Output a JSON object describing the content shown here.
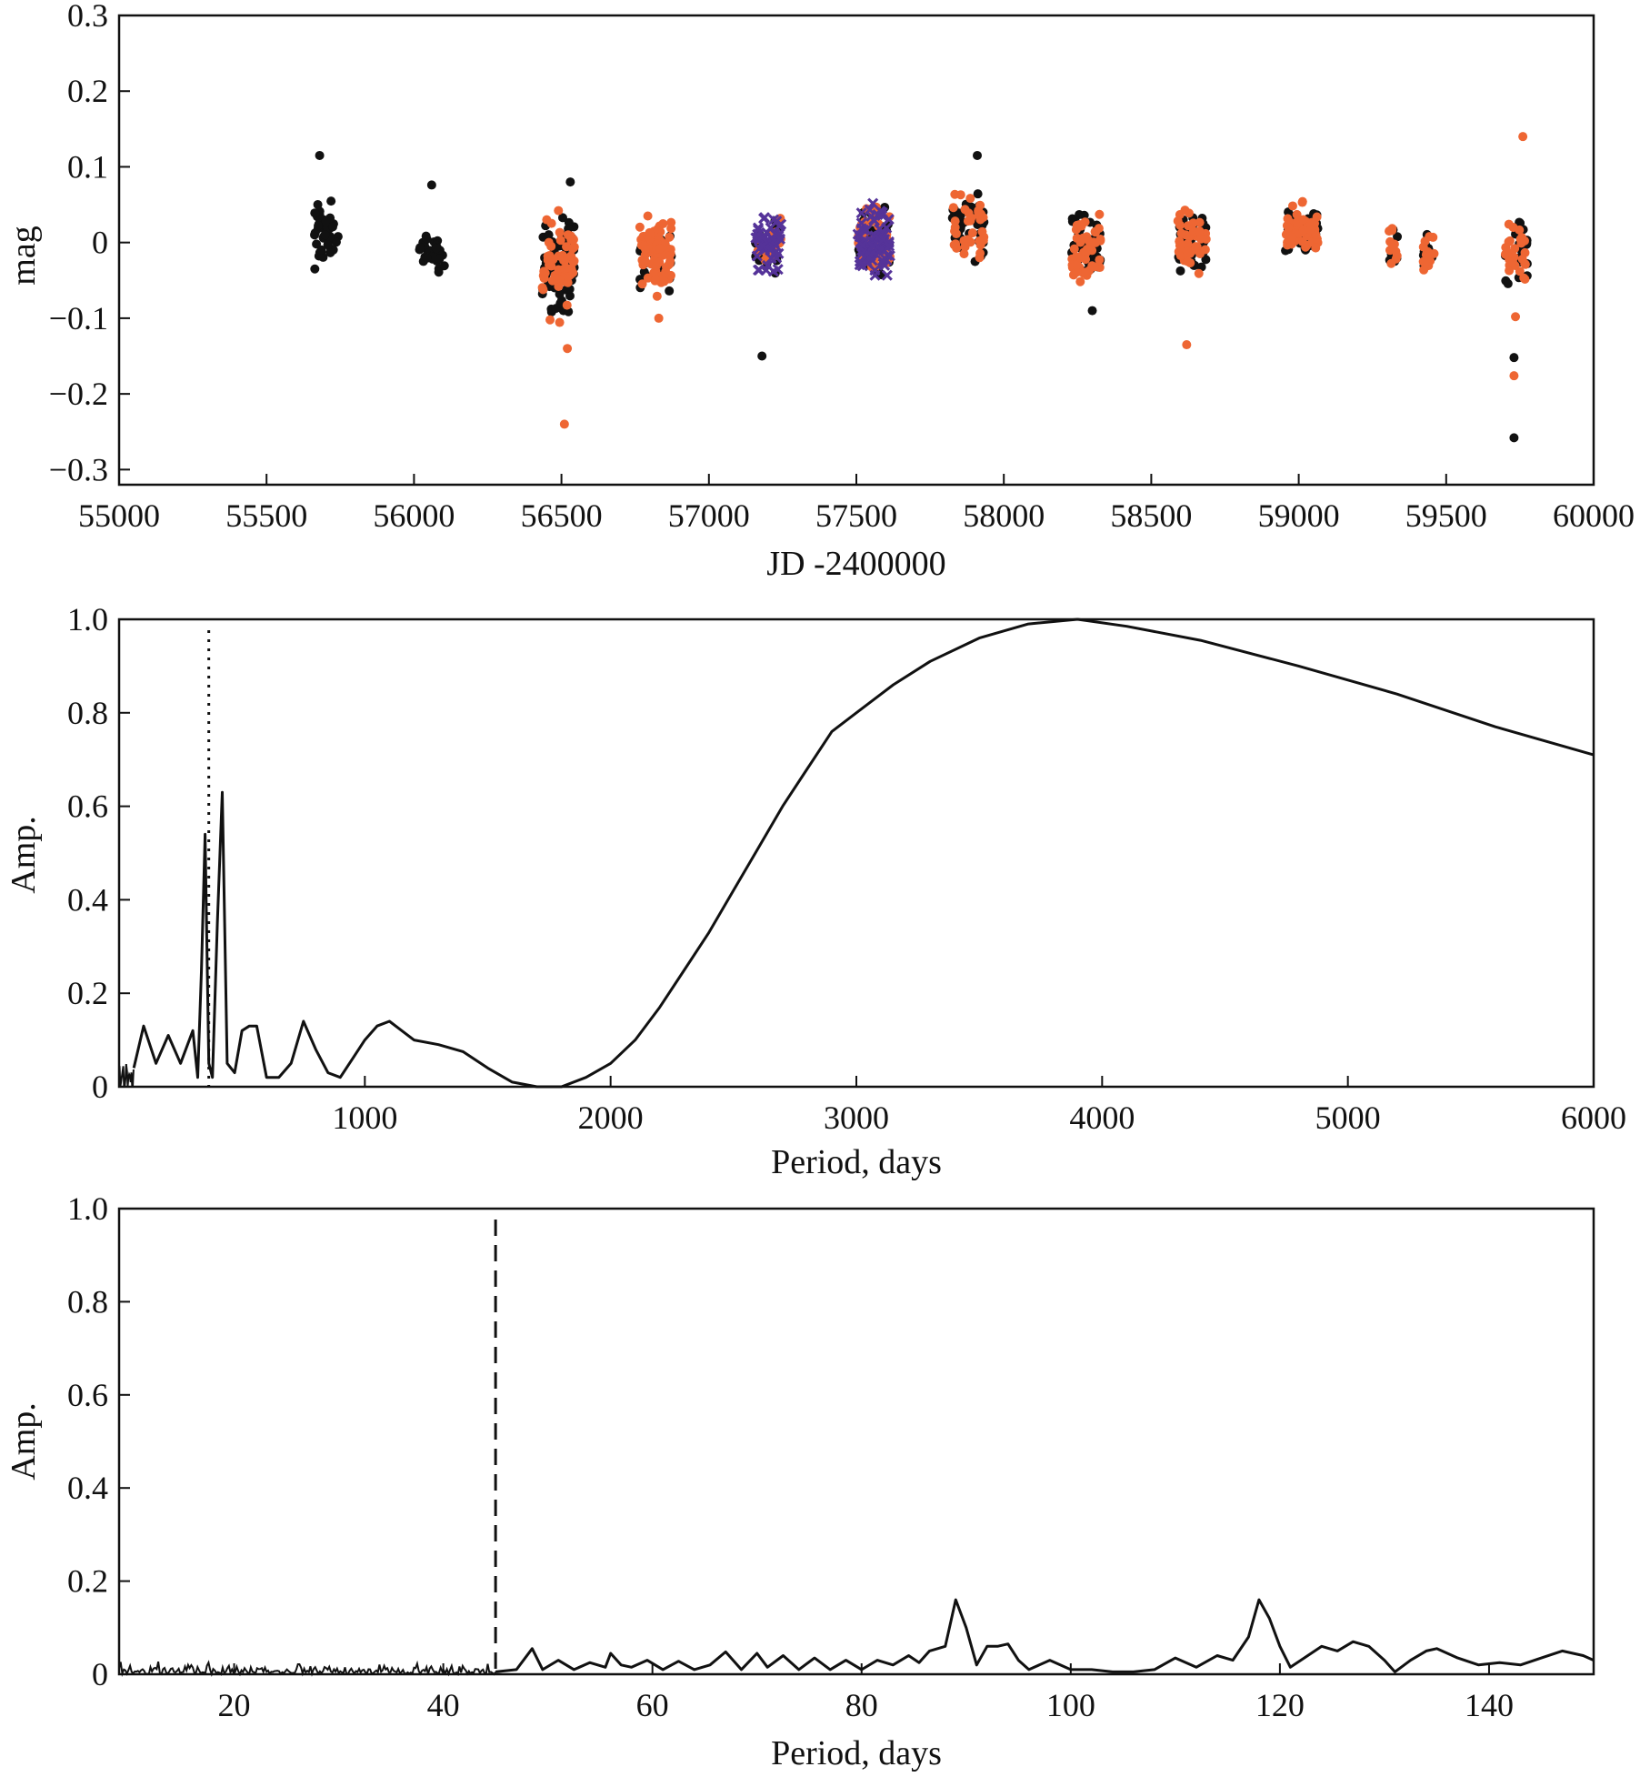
{
  "chart_data": [
    {
      "type": "scatter",
      "id": "lightcurve",
      "xlabel": "JD -2400000",
      "ylabel": "mag",
      "xlim": [
        55000,
        60000
      ],
      "ylim": [
        -0.32,
        0.3
      ],
      "xticks": [
        55000,
        55500,
        56000,
        56500,
        57000,
        57500,
        58000,
        58500,
        59000,
        59500,
        60000
      ],
      "yticks": [
        -0.3,
        -0.2,
        -0.1,
        0,
        0.1,
        0.2,
        0.3
      ],
      "ytick_labels": [
        "−0.3",
        "−0.2",
        "−0.1",
        "0",
        "0.1",
        "0.2",
        "0.3"
      ],
      "series_colors": {
        "black": "#111111",
        "orange": "#ee6633",
        "purple": "#553399"
      },
      "seasons": [
        {
          "center": 55700,
          "width": 90,
          "black": 45,
          "orange": 0,
          "purple": 0,
          "ymin": -0.05,
          "ymax": 0.07
        },
        {
          "center": 56060,
          "width": 90,
          "black": 30,
          "orange": 0,
          "purple": 0,
          "ymin": -0.05,
          "ymax": 0.02
        },
        {
          "center": 56490,
          "width": 110,
          "black": 60,
          "orange": 60,
          "purple": 0,
          "ymin": -0.12,
          "ymax": 0.06
        },
        {
          "center": 56820,
          "width": 110,
          "black": 30,
          "orange": 80,
          "purple": 0,
          "ymin": -0.08,
          "ymax": 0.05
        },
        {
          "center": 57200,
          "width": 90,
          "black": 20,
          "orange": 20,
          "purple": 50,
          "ymin": -0.05,
          "ymax": 0.05
        },
        {
          "center": 57560,
          "width": 110,
          "black": 50,
          "orange": 50,
          "purple": 80,
          "ymin": -0.06,
          "ymax": 0.06
        },
        {
          "center": 57880,
          "width": 110,
          "black": 40,
          "orange": 40,
          "purple": 0,
          "ymin": -0.05,
          "ymax": 0.08
        },
        {
          "center": 58280,
          "width": 100,
          "black": 50,
          "orange": 50,
          "purple": 0,
          "ymin": -0.08,
          "ymax": 0.06
        },
        {
          "center": 58640,
          "width": 100,
          "black": 40,
          "orange": 40,
          "purple": 0,
          "ymin": -0.06,
          "ymax": 0.06
        },
        {
          "center": 59010,
          "width": 110,
          "black": 35,
          "orange": 60,
          "purple": 0,
          "ymin": -0.03,
          "ymax": 0.06
        },
        {
          "center": 59320,
          "width": 30,
          "black": 8,
          "orange": 10,
          "purple": 0,
          "ymin": -0.05,
          "ymax": 0.04
        },
        {
          "center": 59440,
          "width": 40,
          "black": 10,
          "orange": 15,
          "purple": 0,
          "ymin": -0.05,
          "ymax": 0.03
        },
        {
          "center": 59740,
          "width": 80,
          "black": 25,
          "orange": 30,
          "purple": 0,
          "ymin": -0.07,
          "ymax": 0.04
        }
      ],
      "outliers": [
        {
          "x": 55680,
          "y": 0.115,
          "c": "black"
        },
        {
          "x": 56060,
          "y": 0.076,
          "c": "black"
        },
        {
          "x": 56530,
          "y": 0.08,
          "c": "black"
        },
        {
          "x": 56510,
          "y": -0.24,
          "c": "orange"
        },
        {
          "x": 56520,
          "y": -0.14,
          "c": "orange"
        },
        {
          "x": 56830,
          "y": -0.1,
          "c": "orange"
        },
        {
          "x": 57180,
          "y": -0.15,
          "c": "black"
        },
        {
          "x": 57910,
          "y": 0.115,
          "c": "black"
        },
        {
          "x": 58300,
          "y": -0.09,
          "c": "black"
        },
        {
          "x": 58620,
          "y": -0.135,
          "c": "orange"
        },
        {
          "x": 59730,
          "y": -0.258,
          "c": "black"
        },
        {
          "x": 59730,
          "y": -0.152,
          "c": "black"
        },
        {
          "x": 59730,
          "y": -0.176,
          "c": "orange"
        },
        {
          "x": 59735,
          "y": -0.098,
          "c": "orange"
        },
        {
          "x": 59760,
          "y": 0.14,
          "c": "orange"
        }
      ]
    },
    {
      "type": "line",
      "id": "periodogram-long",
      "xlabel": "Period, days",
      "ylabel": "Amp.",
      "xlim": [
        0,
        6000
      ],
      "ylim": [
        0,
        1
      ],
      "xticks": [
        1000,
        2000,
        3000,
        4000,
        5000,
        6000
      ],
      "yticks": [
        0,
        0.2,
        0.4,
        0.6,
        0.8,
        1.0
      ],
      "ytick_labels": [
        "0",
        "0.2",
        "0.4",
        "0.6",
        "0.8",
        "1.0"
      ],
      "marker_line": {
        "x": 365,
        "style": "dotted"
      },
      "x": [
        60,
        100,
        150,
        200,
        250,
        300,
        320,
        335,
        350,
        365,
        380,
        400,
        420,
        440,
        470,
        500,
        530,
        560,
        600,
        650,
        700,
        750,
        800,
        850,
        900,
        950,
        1000,
        1050,
        1100,
        1150,
        1200,
        1300,
        1400,
        1500,
        1600,
        1700,
        1800,
        1900,
        2000,
        2100,
        2200,
        2300,
        2400,
        2500,
        2600,
        2700,
        2800,
        2900,
        3000,
        3150,
        3300,
        3500,
        3700,
        3900,
        4100,
        4400,
        4800,
        5200,
        5600,
        6000
      ],
      "y": [
        0.04,
        0.13,
        0.05,
        0.11,
        0.05,
        0.12,
        0.02,
        0.25,
        0.54,
        0.05,
        0.02,
        0.35,
        0.63,
        0.05,
        0.03,
        0.12,
        0.13,
        0.13,
        0.02,
        0.02,
        0.05,
        0.14,
        0.08,
        0.03,
        0.02,
        0.06,
        0.1,
        0.13,
        0.14,
        0.12,
        0.1,
        0.09,
        0.075,
        0.04,
        0.01,
        0.0,
        0.0,
        0.02,
        0.05,
        0.1,
        0.17,
        0.25,
        0.33,
        0.42,
        0.51,
        0.6,
        0.68,
        0.76,
        0.8,
        0.86,
        0.91,
        0.96,
        0.99,
        1.0,
        0.985,
        0.955,
        0.9,
        0.84,
        0.77,
        0.71
      ]
    },
    {
      "type": "line",
      "id": "periodogram-short",
      "xlabel": "Period, days",
      "ylabel": "Amp.",
      "xlim": [
        9,
        150
      ],
      "ylim": [
        0,
        1
      ],
      "xticks": [
        20,
        40,
        60,
        80,
        100,
        120,
        140
      ],
      "yticks": [
        0,
        0.2,
        0.4,
        0.6,
        0.8,
        1.0
      ],
      "ytick_labels": [
        "0",
        "0.2",
        "0.4",
        "0.6",
        "0.8",
        "1.0"
      ],
      "marker_line": {
        "x": 45,
        "style": "dashed"
      },
      "x": [
        45,
        47,
        48.5,
        49.5,
        51,
        52.5,
        54,
        55.5,
        56,
        57,
        58,
        59.5,
        61,
        62.5,
        64,
        65.5,
        67,
        68.5,
        70,
        71,
        72.5,
        74,
        75.5,
        77,
        78.5,
        80,
        81.5,
        83,
        84.5,
        85.5,
        86.5,
        88,
        89,
        90,
        91,
        92,
        93,
        94,
        95,
        96,
        98,
        100,
        102,
        104,
        106,
        108,
        110,
        112,
        114,
        115.5,
        117,
        118,
        119,
        120,
        121,
        122,
        124,
        125.5,
        127,
        128.5,
        130,
        131,
        132.5,
        134,
        135,
        137,
        139,
        141,
        143,
        145,
        147,
        149,
        150
      ],
      "y": [
        0.005,
        0.01,
        0.055,
        0.01,
        0.03,
        0.01,
        0.025,
        0.015,
        0.045,
        0.02,
        0.015,
        0.03,
        0.01,
        0.028,
        0.01,
        0.02,
        0.048,
        0.01,
        0.045,
        0.015,
        0.04,
        0.01,
        0.035,
        0.01,
        0.03,
        0.01,
        0.03,
        0.02,
        0.04,
        0.025,
        0.05,
        0.06,
        0.16,
        0.1,
        0.02,
        0.06,
        0.06,
        0.065,
        0.03,
        0.01,
        0.03,
        0.01,
        0.01,
        0.005,
        0.005,
        0.01,
        0.035,
        0.015,
        0.04,
        0.03,
        0.08,
        0.16,
        0.12,
        0.06,
        0.015,
        0.03,
        0.06,
        0.05,
        0.07,
        0.06,
        0.03,
        0.005,
        0.03,
        0.05,
        0.055,
        0.035,
        0.02,
        0.025,
        0.02,
        0.035,
        0.05,
        0.04,
        0.03
      ]
    }
  ]
}
